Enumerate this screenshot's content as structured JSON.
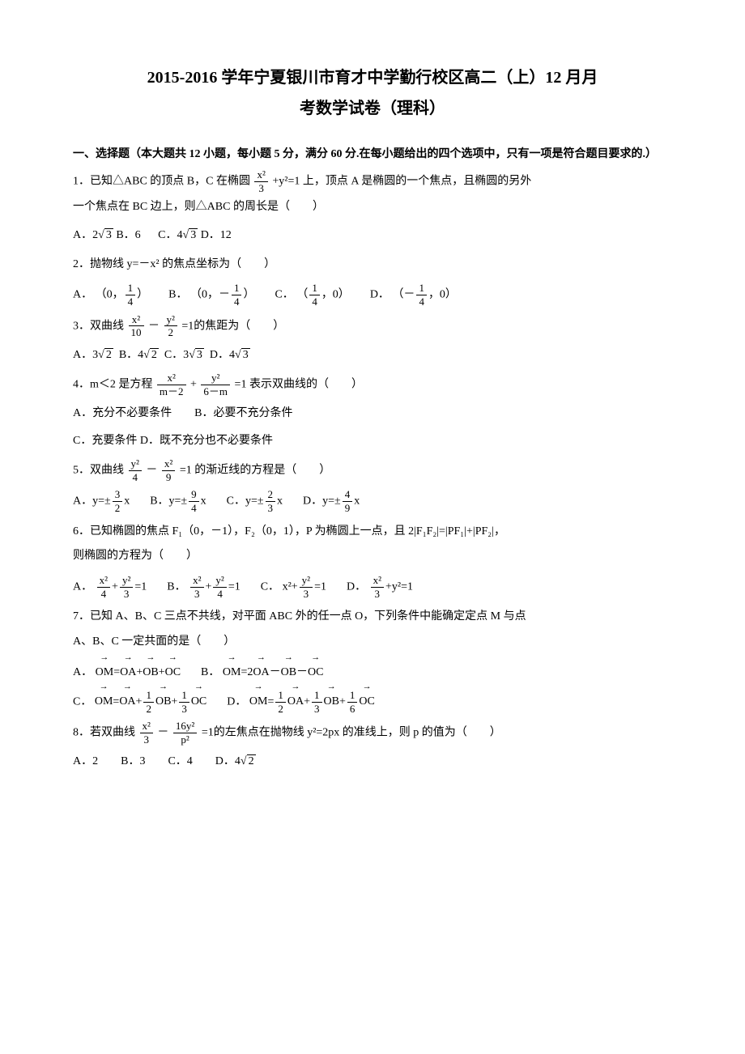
{
  "title_line1": "2015-2016 学年宁夏银川市育才中学勤行校区高二（上）12 月月",
  "title_line2": "考数学试卷（理科）",
  "section": "一、选择题（本大题共 12 小题，每小题 5 分，满分 60 分.在每小题给出的四个选项中，只有一项是符合题目要求的.）",
  "q1_a": "1．已知△ABC 的顶点 B，C 在椭圆",
  "q1_b": "+y²=1 上，顶点 A 是椭圆的一个焦点，且椭圆的另外",
  "q1_c": "一个焦点在 BC 边上，则△ABC 的周长是（　　）",
  "q1_optA": "A．2",
  "q1_optB": "B．6",
  "q1_optC": "C．4",
  "q1_optD": "D．12",
  "q2": "2．抛物线 y=－x² 的焦点坐标为（　　）",
  "q2_A": "A．",
  "q2_B": "B．",
  "q2_C": "C．",
  "q2_D": "D．",
  "q2_Aval_l": "（0，",
  "q2_Aval_r": "）",
  "q2_Bval_l": "（0，－",
  "q2_Bval_r": "）",
  "q2_Cval_l": "（",
  "q2_Cval_r": "，0）",
  "q2_Dval_l": "（－",
  "q2_Dval_r": "，0）",
  "q3_a": "3．双曲线",
  "q3_b": "=1的焦距为（　　）",
  "q3_A": "A．3",
  "q3_B": "B．4",
  "q3_C": "C．3",
  "q3_D": "D．4",
  "q4_a": "4．m＜2 是方程",
  "q4_b": "=1 表示双曲线的（　　）",
  "q4_optAB": "A．充分不必要条件　　B．必要不充分条件",
  "q4_optCD": "C．充要条件 D．既不充分也不必要条件",
  "q5_a": "5．双曲线",
  "q5_b": "=1 的渐近线的方程是（　　）",
  "q5_A": "A．y=±",
  "q5_B": "B．y=±",
  "q5_C": "C．y=±",
  "q5_D": "D．y=±",
  "q5_Ax": "x",
  "q5_Bx": "x",
  "q5_Cx": "x",
  "q5_Dx": "x",
  "q6_a": "6．已知椭圆的焦点 F₁（0，－1），F₂（0，1），P 为椭圆上一点，且 2|F₁F₂|=|PF₁|+|PF₂|，",
  "q6_b": "则椭圆的方程为（　　）",
  "q6_A": "A．",
  "q6_B": "B．",
  "q6_C": "C．",
  "q6_D": "D．",
  "q6_eq": "=1",
  "q6_Cpre": "x²+",
  "q6_Dsuf": "+y²=1",
  "q7_a": "7．已知 A、B、C 三点不共线，对平面 ABC 外的任一点 O，下列条件中能确定定点 M 与点",
  "q7_b": "A、B、C 一定共面的是（　　）",
  "q7_A": "A．",
  "q7_B": "B．",
  "q7_C": "C．",
  "q7_D": "D．",
  "OM": "OM",
  "OA": "OA",
  "OB": "OB",
  "OC": "OC",
  "eq": "=",
  "plus": "+",
  "minus": "－",
  "two": "2",
  "q8_a": "8．若双曲线",
  "q8_b": "=1的左焦点在抛物线 y²=2px 的准线上，则 p 的值为（　　）",
  "q8_opts_a": "A．2　　B．3　　C．4　　D．4",
  "frac_x2_3_num": "x²",
  "frac_x2_3_den": "3",
  "frac_1_4_num": "1",
  "frac_1_4_den": "4",
  "frac_x2_10_num": "x²",
  "frac_x2_10_den": "10",
  "frac_y2_2_num": "y²",
  "frac_y2_2_den": "2",
  "frac_x2_m2_num": "x²",
  "frac_x2_m2_den": "m－2",
  "frac_y2_6m_num": "y²",
  "frac_y2_6m_den": "6－m",
  "frac_y2_4_num": "y²",
  "frac_y2_4_den": "4",
  "frac_x2_9_num": "x²",
  "frac_x2_9_den": "9",
  "frac_3_2_num": "3",
  "frac_3_2_den": "2",
  "frac_9_4_num": "9",
  "frac_9_4_den": "4",
  "frac_2_3_num": "2",
  "frac_2_3_den": "3",
  "frac_4_9_num": "4",
  "frac_4_9_den": "9",
  "frac_x2_4_num": "x²",
  "frac_x2_4_den": "4",
  "frac_y2_3_num": "y²",
  "frac_y2_3_den": "3",
  "frac_1_2_num": "1",
  "frac_1_2_den": "2",
  "frac_1_3_num": "1",
  "frac_1_3_den": "3",
  "frac_1_6_num": "1",
  "frac_1_6_den": "6",
  "frac_16y2_p2_num": "16y²",
  "frac_16y2_p2_den": "p²",
  "rad2": "2",
  "rad3": "3"
}
